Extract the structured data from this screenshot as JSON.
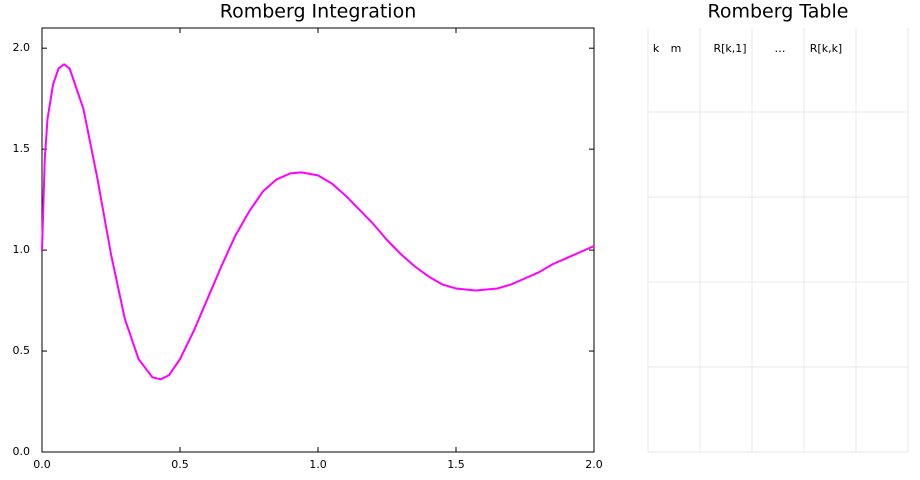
{
  "chart_data": {
    "type": "line",
    "title": "Romberg Integration",
    "x": [
      0,
      0.01,
      0.02,
      0.04,
      0.06,
      0.08,
      0.1,
      0.15,
      0.2,
      0.25,
      0.3,
      0.35,
      0.4,
      0.43,
      0.46,
      0.5,
      0.55,
      0.6,
      0.65,
      0.7,
      0.75,
      0.8,
      0.85,
      0.9,
      0.94,
      1.0,
      1.05,
      1.1,
      1.15,
      1.2,
      1.25,
      1.3,
      1.35,
      1.4,
      1.45,
      1.5,
      1.57,
      1.65,
      1.7,
      1.75,
      1.8,
      1.85,
      1.9,
      1.95,
      2.0
    ],
    "series": [
      {
        "color": "#ff00ff",
        "values": [
          1.0,
          1.45,
          1.65,
          1.82,
          1.9,
          1.92,
          1.9,
          1.7,
          1.36,
          0.98,
          0.66,
          0.46,
          0.37,
          0.36,
          0.38,
          0.46,
          0.6,
          0.76,
          0.92,
          1.07,
          1.19,
          1.29,
          1.35,
          1.38,
          1.385,
          1.37,
          1.33,
          1.27,
          1.2,
          1.13,
          1.05,
          0.98,
          0.92,
          0.87,
          0.83,
          0.81,
          0.8,
          0.81,
          0.83,
          0.86,
          0.89,
          0.93,
          0.96,
          0.99,
          1.02
        ]
      }
    ],
    "xlim": [
      0,
      2
    ],
    "ylim": [
      0,
      2.1
    ],
    "xticks": [
      {
        "value": 0,
        "label": "0.0"
      },
      0.5,
      {
        "value": 1,
        "label": "1.0"
      },
      1.5,
      {
        "value": 2,
        "label": "2.0"
      }
    ],
    "yticks": [
      {
        "value": 0,
        "label": "0.0"
      },
      0.5,
      {
        "value": 1,
        "label": "1.0"
      },
      1.5,
      {
        "value": 2,
        "label": "2.0"
      }
    ]
  },
  "table": {
    "title": "Romberg Table",
    "headers": [
      "k",
      "m",
      "R[k,1]",
      "…",
      "R[k,k]"
    ]
  }
}
